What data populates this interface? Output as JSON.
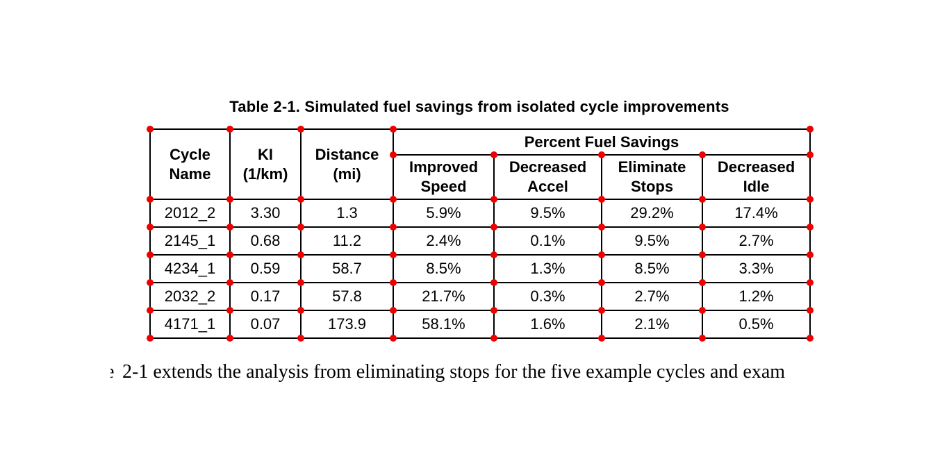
{
  "table": {
    "caption": "Table 2-1. Simulated fuel savings from isolated cycle improvements",
    "dot_color": "#ee0000",
    "border_color": "#000000",
    "header": {
      "cycle_name": "Cycle\nName",
      "ki": "KI\n(1/km)",
      "distance": "Distance\n(mi)",
      "group": "Percent Fuel Savings",
      "sub": [
        "Improved\nSpeed",
        "Decreased\nAccel",
        "Eliminate\nStops",
        "Decreased\nIdle"
      ]
    },
    "rows": [
      [
        "2012_2",
        "3.30",
        "1.3",
        "5.9%",
        "9.5%",
        "29.2%",
        "17.4%"
      ],
      [
        "2145_1",
        "0.68",
        "11.2",
        "2.4%",
        "0.1%",
        "9.5%",
        "2.7%"
      ],
      [
        "4234_1",
        "0.59",
        "58.7",
        "8.5%",
        "1.3%",
        "8.5%",
        "3.3%"
      ],
      [
        "2032_2",
        "0.17",
        "57.8",
        "21.7%",
        "0.3%",
        "2.7%",
        "1.2%"
      ],
      [
        "4171_1",
        "0.07",
        "173.9",
        "58.1%",
        "1.6%",
        "2.1%",
        "0.5%"
      ]
    ]
  },
  "body": {
    "leading_fragment": "e",
    "text": "2-1 extends the analysis from eliminating stops for the five example cycles and exam"
  }
}
